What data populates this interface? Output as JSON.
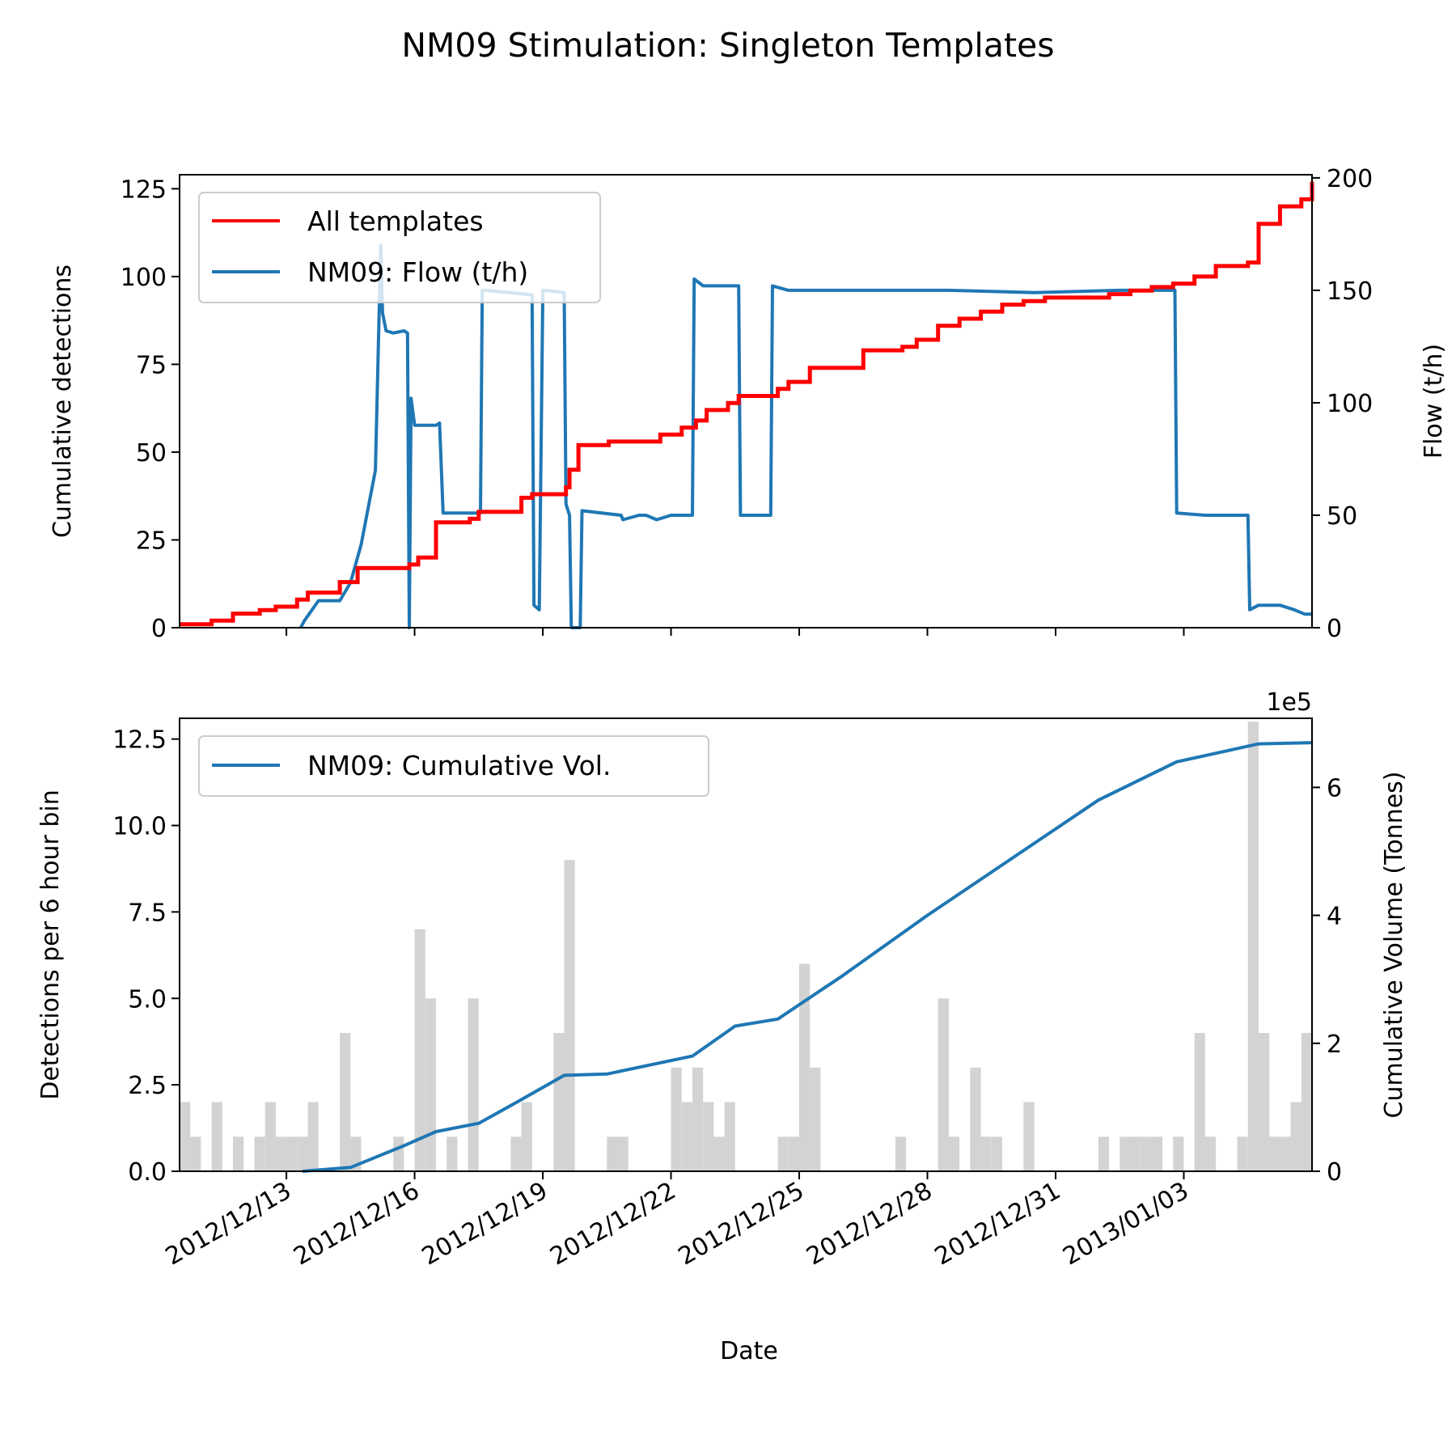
{
  "figure": {
    "title": "NM09 Stimulation: Singleton Templates",
    "xlabel": "Date"
  },
  "chart_data": [
    {
      "type": "line",
      "panel": "top",
      "ylabel": "Cumulative detections",
      "y2label": "Flow (t/h)",
      "xlim": [
        "2012/12/10 12:00",
        "2013/01/06 00:00"
      ],
      "ylim": [
        0,
        129
      ],
      "y2lim": [
        0,
        201.4
      ],
      "yticks": [
        0,
        25,
        50,
        75,
        100,
        125
      ],
      "y2ticks": [
        0,
        50,
        100,
        150,
        200
      ],
      "legend_position": "upper-left",
      "series": [
        {
          "name": "All templates",
          "axis": "left",
          "color": "#ff0000",
          "step": true,
          "x": [
            "2012/12/10 12:00",
            "2012/12/11 06:00",
            "2012/12/11 18:00",
            "2012/12/12 09:00",
            "2012/12/12 18:00",
            "2012/12/13 06:00",
            "2012/12/13 12:00",
            "2012/12/14 06:00",
            "2012/12/14 16:00",
            "2012/12/15 21:00",
            "2012/12/16 02:00",
            "2012/12/16 12:00",
            "2012/12/17 07:00",
            "2012/12/17 12:00",
            "2012/12/18 12:00",
            "2012/12/18 18:00",
            "2012/12/19 13:00",
            "2012/12/19 15:00",
            "2012/12/19 20:00",
            "2012/12/20 13:00",
            "2012/12/21 18:00",
            "2012/12/22 06:00",
            "2012/12/22 14:00",
            "2012/12/22 20:00",
            "2012/12/23 08:00",
            "2012/12/23 14:00",
            "2012/12/24 12:00",
            "2012/12/24 18:00",
            "2012/12/25 06:00",
            "2012/12/26 12:00",
            "2012/12/27 10:00",
            "2012/12/27 18:00",
            "2012/12/28 06:00",
            "2012/12/28 18:00",
            "2012/12/29 06:00",
            "2012/12/29 18:00",
            "2012/12/30 06:00",
            "2012/12/30 18:00",
            "2013/01/01 06:00",
            "2013/01/01 18:00",
            "2013/01/02 06:00",
            "2013/01/02 18:00",
            "2013/01/03 06:00",
            "2013/01/03 18:00",
            "2013/01/04 12:00",
            "2013/01/04 18:00",
            "2013/01/05 06:00",
            "2013/01/05 18:00",
            "2013/01/06 00:00"
          ],
          "values": [
            1,
            2,
            4,
            5,
            6,
            8,
            10,
            13,
            17,
            18,
            20,
            30,
            31,
            33,
            37,
            38,
            40,
            45,
            52,
            53,
            55,
            57,
            59,
            62,
            64,
            66,
            68,
            70,
            74,
            79,
            80,
            82,
            86,
            88,
            90,
            92,
            93,
            94,
            95,
            96,
            97,
            98,
            100,
            103,
            104,
            115,
            120,
            122,
            127
          ]
        },
        {
          "name": "NM09: Flow (t/h)",
          "axis": "right",
          "color": "#1f77b4",
          "x": [
            "2012/12/13 08:00",
            "2012/12/13 10:00",
            "2012/12/13 18:00",
            "2012/12/14 06:00",
            "2012/12/14 12:00",
            "2012/12/14 18:00",
            "2012/12/15 02:00",
            "2012/12/15 05:00",
            "2012/12/15 06:00",
            "2012/12/15 08:00",
            "2012/12/15 12:00",
            "2012/12/15 18:00",
            "2012/12/15 20:00",
            "2012/12/15 21:00",
            "2012/12/15 22:00",
            "2012/12/16 00:00",
            "2012/12/16 12:00",
            "2012/12/16 14:00",
            "2012/12/16 16:00",
            "2012/12/17 06:00",
            "2012/12/17 13:00",
            "2012/12/17 14:00",
            "2012/12/17 16:00",
            "2012/12/18 18:00",
            "2012/12/18 19:00",
            "2012/12/18 22:00",
            "2012/12/19 00:00",
            "2012/12/19 01:00",
            "2012/12/19 12:00",
            "2012/12/19 13:00",
            "2012/12/19 15:00",
            "2012/12/19 16:00",
            "2012/12/19 21:00",
            "2012/12/19 22:00",
            "2012/12/20 20:00",
            "2012/12/20 21:00",
            "2012/12/21 06:00",
            "2012/12/21 10:00",
            "2012/12/21 16:00",
            "2012/12/22 00:00",
            "2012/12/22 12:00",
            "2012/12/22 13:00",
            "2012/12/22 18:00",
            "2012/12/23 14:00",
            "2012/12/23 15:00",
            "2012/12/23 18:00",
            "2012/12/24 08:00",
            "2012/12/24 09:00",
            "2012/12/24 18:00",
            "2012/12/26 12:00",
            "2012/12/28 12:00",
            "2012/12/30 12:00",
            "2013/01/01 12:00",
            "2013/01/02 12:00",
            "2013/01/02 19:00",
            "2013/01/02 20:00",
            "2013/01/03 12:00",
            "2013/01/04 00:00",
            "2013/01/04 12:00",
            "2013/01/04 13:00",
            "2013/01/04 18:00",
            "2013/01/05 06:00",
            "2013/01/05 14:00",
            "2013/01/05 20:00",
            "2013/01/06 00:00"
          ],
          "values": [
            0,
            3,
            12,
            12,
            20,
            37,
            70,
            170,
            140,
            132,
            131,
            132,
            131,
            0,
            102,
            90,
            90,
            91,
            51,
            51,
            51,
            150,
            150,
            148,
            10,
            8,
            150,
            150,
            149,
            55,
            50,
            0,
            0,
            52,
            50,
            48,
            50,
            50,
            48,
            50,
            50,
            155,
            152,
            152,
            50,
            50,
            50,
            152,
            150,
            150,
            150,
            149,
            150,
            150,
            150,
            51,
            50,
            50,
            50,
            8,
            10,
            10,
            8,
            6,
            6
          ]
        }
      ]
    },
    {
      "type": "bar",
      "panel": "bottom",
      "ylabel": "Detections per 6 hour bin",
      "y2label": "Cumulative Volume (Tonnes)",
      "y2_offset_label": "1e5",
      "xlim": [
        "2012/12/10 12:00",
        "2013/01/06 00:00"
      ],
      "ylim": [
        0,
        13.1
      ],
      "y2lim": [
        0,
        7.08
      ],
      "yticks": [
        "0.0",
        "2.5",
        "5.0",
        "7.5",
        "10.0",
        "12.5"
      ],
      "y2ticks": [
        0,
        2,
        4,
        6
      ],
      "xticks": [
        "2012/12/13",
        "2012/12/16",
        "2012/12/19",
        "2012/12/22",
        "2012/12/25",
        "2012/12/28",
        "2012/12/31",
        "2013/01/03"
      ],
      "legend_position": "upper-left",
      "bin_hours": 6,
      "bar_color": "#d3d3d3",
      "bars": [
        {
          "start": "2012/12/10 12:00",
          "count": 2
        },
        {
          "start": "2012/12/10 18:00",
          "count": 1
        },
        {
          "start": "2012/12/11 06:00",
          "count": 2
        },
        {
          "start": "2012/12/11 18:00",
          "count": 1
        },
        {
          "start": "2012/12/12 06:00",
          "count": 1
        },
        {
          "start": "2012/12/12 12:00",
          "count": 2
        },
        {
          "start": "2012/12/12 18:00",
          "count": 1
        },
        {
          "start": "2012/12/13 00:00",
          "count": 1
        },
        {
          "start": "2012/12/13 06:00",
          "count": 1
        },
        {
          "start": "2012/12/13 12:00",
          "count": 2
        },
        {
          "start": "2012/12/14 06:00",
          "count": 4
        },
        {
          "start": "2012/12/14 12:00",
          "count": 1
        },
        {
          "start": "2012/12/15 12:00",
          "count": 1
        },
        {
          "start": "2012/12/16 00:00",
          "count": 7
        },
        {
          "start": "2012/12/16 06:00",
          "count": 5
        },
        {
          "start": "2012/12/16 18:00",
          "count": 1
        },
        {
          "start": "2012/12/17 06:00",
          "count": 5
        },
        {
          "start": "2012/12/18 06:00",
          "count": 1
        },
        {
          "start": "2012/12/18 12:00",
          "count": 2
        },
        {
          "start": "2012/12/19 06:00",
          "count": 4
        },
        {
          "start": "2012/12/19 12:00",
          "count": 9
        },
        {
          "start": "2012/12/20 12:00",
          "count": 1
        },
        {
          "start": "2012/12/20 18:00",
          "count": 1
        },
        {
          "start": "2012/12/22 00:00",
          "count": 3
        },
        {
          "start": "2012/12/22 06:00",
          "count": 2
        },
        {
          "start": "2012/12/22 12:00",
          "count": 3
        },
        {
          "start": "2012/12/22 18:00",
          "count": 2
        },
        {
          "start": "2012/12/23 00:00",
          "count": 1
        },
        {
          "start": "2012/12/23 06:00",
          "count": 2
        },
        {
          "start": "2012/12/24 12:00",
          "count": 1
        },
        {
          "start": "2012/12/24 18:00",
          "count": 1
        },
        {
          "start": "2012/12/25 00:00",
          "count": 6
        },
        {
          "start": "2012/12/25 06:00",
          "count": 3
        },
        {
          "start": "2012/12/27 06:00",
          "count": 1
        },
        {
          "start": "2012/12/28 06:00",
          "count": 5
        },
        {
          "start": "2012/12/28 12:00",
          "count": 1
        },
        {
          "start": "2012/12/29 00:00",
          "count": 3
        },
        {
          "start": "2012/12/29 06:00",
          "count": 1
        },
        {
          "start": "2012/12/29 12:00",
          "count": 1
        },
        {
          "start": "2012/12/30 06:00",
          "count": 2
        },
        {
          "start": "2013/01/01 00:00",
          "count": 1
        },
        {
          "start": "2013/01/01 12:00",
          "count": 1
        },
        {
          "start": "2013/01/01 18:00",
          "count": 1
        },
        {
          "start": "2013/01/02 00:00",
          "count": 1
        },
        {
          "start": "2013/01/02 06:00",
          "count": 1
        },
        {
          "start": "2013/01/02 18:00",
          "count": 1
        },
        {
          "start": "2013/01/03 06:00",
          "count": 4
        },
        {
          "start": "2013/01/03 12:00",
          "count": 1
        },
        {
          "start": "2013/01/04 06:00",
          "count": 1
        },
        {
          "start": "2013/01/04 12:00",
          "count": 13
        },
        {
          "start": "2013/01/04 18:00",
          "count": 4
        },
        {
          "start": "2013/01/05 00:00",
          "count": 1
        },
        {
          "start": "2013/01/05 06:00",
          "count": 1
        },
        {
          "start": "2013/01/05 12:00",
          "count": 2
        },
        {
          "start": "2013/01/05 18:00",
          "count": 4
        }
      ],
      "series": [
        {
          "name": "NM09: Cumulative Vol.",
          "axis": "right",
          "color": "#1f77b4",
          "unit_scale": "1e5",
          "x": [
            "2012/12/13 09:00",
            "2012/12/14 12:00",
            "2012/12/15 18:00",
            "2012/12/16 12:00",
            "2012/12/17 12:00",
            "2012/12/18 12:00",
            "2012/12/19 12:00",
            "2012/12/20 12:00",
            "2012/12/22 12:00",
            "2012/12/23 12:00",
            "2012/12/24 12:00",
            "2012/12/26 00:00",
            "2012/12/28 00:00",
            "2012/12/30 00:00",
            "2013/01/01 00:00",
            "2013/01/02 20:00",
            "2013/01/04 18:00",
            "2013/01/06 00:00"
          ],
          "values": [
            0.0,
            0.06,
            0.4,
            0.62,
            0.75,
            1.12,
            1.5,
            1.52,
            1.8,
            2.27,
            2.38,
            3.05,
            4.0,
            4.9,
            5.8,
            6.4,
            6.68,
            6.7
          ]
        }
      ]
    }
  ]
}
